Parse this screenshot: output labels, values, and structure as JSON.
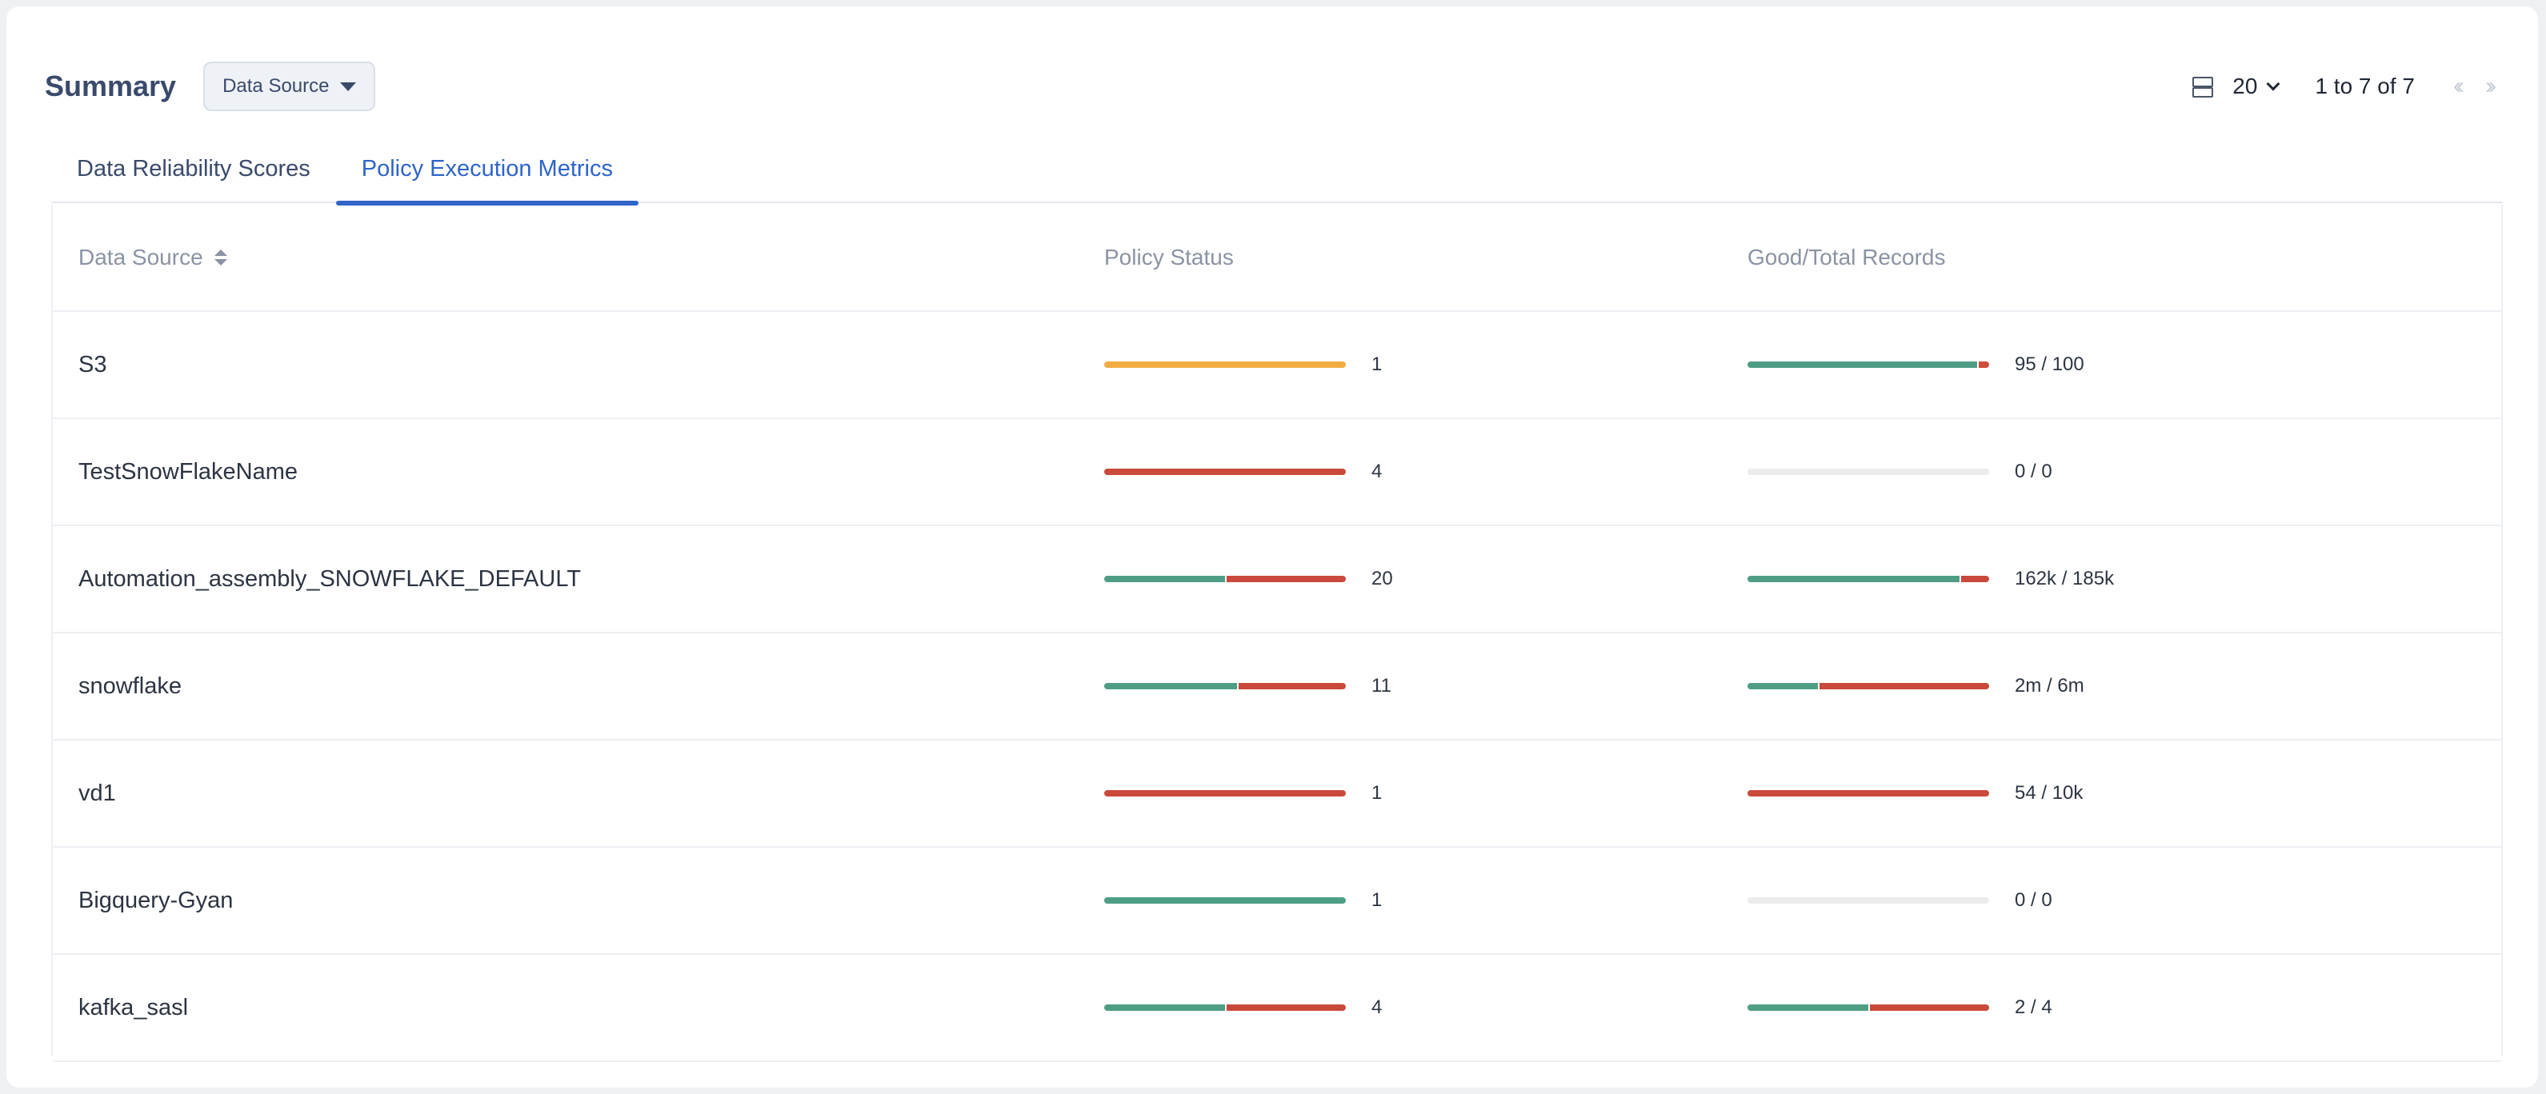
{
  "header": {
    "title": "Summary",
    "source_button_label": "Data Source",
    "page_size": "20",
    "range_text": "1 to 7 of 7"
  },
  "tabs": [
    {
      "label": "Data Reliability Scores",
      "active": false
    },
    {
      "label": "Policy Execution Metrics",
      "active": true
    }
  ],
  "table": {
    "columns": [
      "Data Source",
      "Policy Status",
      "Good/Total Records"
    ],
    "rows": [
      {
        "name": "S3",
        "policy_count": "1",
        "policy_bar": [
          {
            "color": "#f2ad42",
            "fraction": 1.0
          }
        ],
        "records": "95 / 100",
        "records_bar": [
          {
            "color": "#4e9e86",
            "fraction": 0.95
          },
          {
            "color": "#cf4b3b",
            "fraction": 0.05
          }
        ]
      },
      {
        "name": "TestSnowFlakeName",
        "policy_count": "4",
        "policy_bar": [
          {
            "color": "#c94a3b",
            "fraction": 1.0
          }
        ],
        "records": "0 / 0",
        "records_bar": []
      },
      {
        "name": "Automation_assembly_SNOWFLAKE_DEFAULT",
        "policy_count": "20",
        "policy_bar": [
          {
            "color": "#4e9e86",
            "fraction": 0.5
          },
          {
            "color": "#c94a3b",
            "fraction": 0.5
          }
        ],
        "records": "162k / 185k",
        "records_bar": [
          {
            "color": "#4e9e86",
            "fraction": 0.876
          },
          {
            "color": "#c94a3b",
            "fraction": 0.124
          }
        ]
      },
      {
        "name": "snowflake",
        "policy_count": "11",
        "policy_bar": [
          {
            "color": "#4e9e86",
            "fraction": 0.55
          },
          {
            "color": "#c94a3b",
            "fraction": 0.45
          }
        ],
        "records": "2m / 6m",
        "records_bar": [
          {
            "color": "#4e9e86",
            "fraction": 0.29
          },
          {
            "color": "#c94a3b",
            "fraction": 0.71
          }
        ]
      },
      {
        "name": "vd1",
        "policy_count": "1",
        "policy_bar": [
          {
            "color": "#c94a3b",
            "fraction": 1.0
          }
        ],
        "records": "54 / 10k",
        "records_bar": [
          {
            "color": "#c94a3b",
            "fraction": 1.0
          }
        ]
      },
      {
        "name": "Bigquery-Gyan",
        "policy_count": "1",
        "policy_bar": [
          {
            "color": "#4e9e86",
            "fraction": 1.0
          }
        ],
        "records": "0 / 0",
        "records_bar": []
      },
      {
        "name": "kafka_sasl",
        "policy_count": "4",
        "policy_bar": [
          {
            "color": "#4e9e86",
            "fraction": 0.5
          },
          {
            "color": "#c94a3b",
            "fraction": 0.5
          }
        ],
        "records": "2 / 4",
        "records_bar": [
          {
            "color": "#4e9e86",
            "fraction": 0.5
          },
          {
            "color": "#c94a3b",
            "fraction": 0.5
          }
        ]
      }
    ]
  }
}
